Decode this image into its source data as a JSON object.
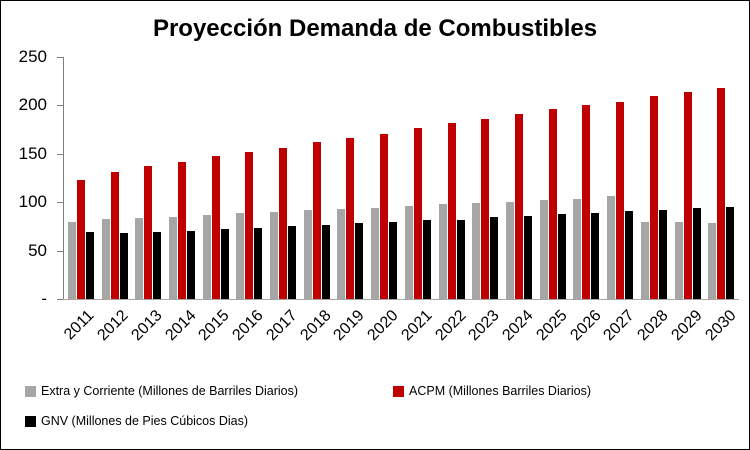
{
  "title": "Proyección Demanda de Combustibles",
  "colors": {
    "extra_gray": "#a6a6a6",
    "acpm_red": "#c00000",
    "gnv_black": "#000000",
    "axis_line": "#7f7f7f",
    "baseline": "#a6a6a6",
    "text": "#000000",
    "background": "#ffffff"
  },
  "chart_data": {
    "type": "bar",
    "title": "Proyección Demanda de Combustibles",
    "xlabel": "",
    "ylabel": "",
    "ylim": [
      0,
      250
    ],
    "grid": false,
    "legend_position": "bottom",
    "yticks": [
      {
        "label": "250",
        "value": 250
      },
      {
        "label": "200",
        "value": 200
      },
      {
        "label": "150",
        "value": 150
      },
      {
        "label": "100",
        "value": 100
      },
      {
        "label": "50",
        "value": 50
      },
      {
        "label": " -",
        "value": 0
      }
    ],
    "categories": [
      "2011",
      "2012",
      "2013",
      "2014",
      "2015",
      "2016",
      "2017",
      "2018",
      "2019",
      "2020",
      "2021",
      "2022",
      "2023",
      "2024",
      "2025",
      "2026",
      "2027",
      "2028",
      "2029",
      "2030"
    ],
    "series": [
      {
        "key": "extra",
        "name": "Extra y Corriente (Millones de Barriles Diarios)",
        "color": "#a6a6a6",
        "values": [
          80,
          83,
          83.5,
          85,
          86.5,
          89,
          90,
          91.5,
          93,
          94.5,
          96.5,
          98,
          99,
          100.5,
          102,
          103,
          106,
          80,
          80,
          79
        ]
      },
      {
        "key": "acpm",
        "name": "ACPM (Millones Barriles Diarios)",
        "color": "#c00000",
        "values": [
          123,
          131,
          137,
          142,
          148,
          152,
          156,
          162,
          166,
          171,
          176.5,
          182,
          186,
          191,
          196,
          200.5,
          204,
          209.5,
          214,
          218
        ]
      },
      {
        "key": "gnv",
        "name": "GNV (Millones de Pies Cúbicos Dias)",
        "color": "#000000",
        "values": [
          69,
          68,
          69,
          70,
          72,
          73.5,
          75,
          76.5,
          79,
          80,
          82,
          82,
          84.5,
          86,
          88,
          88.5,
          90.5,
          92.5,
          94,
          95
        ]
      }
    ]
  }
}
